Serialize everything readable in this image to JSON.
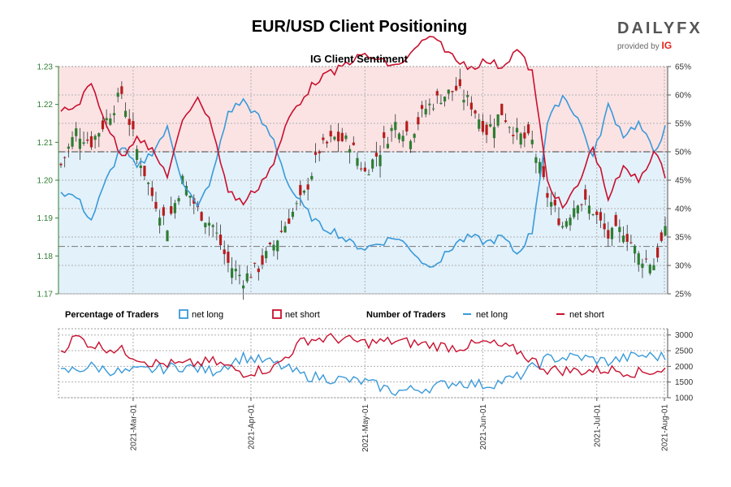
{
  "title": "EUR/USD Client Positioning",
  "logo": {
    "brand": "DAILYFX",
    "provided_by": "provided by",
    "ig": "IG"
  },
  "colors": {
    "long": "#3a9ad9",
    "short": "#c8102e",
    "long_zone": "#e3f1fa",
    "short_zone": "#fbe3e4",
    "candle_up": "#2e7d32",
    "candle_down": "#b71c1c",
    "price_axis": "#2e7d32"
  },
  "chart_data": [
    {
      "type": "candlestick",
      "title": "IG Client Sentiment",
      "x_labels": [
        "2021-Mar-01",
        "2021-Apr-01",
        "2021-May-01",
        "2021-Jun-01",
        "2021-Jul-01",
        "2021-Aug-01"
      ],
      "n_points": 160,
      "price_axis": {
        "ylim": [
          1.17,
          1.23
        ],
        "ticks": [
          "1.17",
          "1.18",
          "1.19",
          "1.20",
          "1.21",
          "1.22",
          "1.23"
        ]
      },
      "pct_axis": {
        "ylim": [
          25,
          65
        ],
        "ticks": [
          "25%",
          "30%",
          "35%",
          "40%",
          "45%",
          "50%",
          "55%",
          "60%",
          "65%"
        ]
      },
      "reference_lines": {
        "price_current": 1.1825,
        "pct_50": 50
      },
      "price_anchors": [
        [
          0,
          1.204
        ],
        [
          4,
          1.213
        ],
        [
          8,
          1.21
        ],
        [
          12,
          1.216
        ],
        [
          16,
          1.223
        ],
        [
          20,
          1.208
        ],
        [
          24,
          1.196
        ],
        [
          28,
          1.188
        ],
        [
          32,
          1.2
        ],
        [
          36,
          1.192
        ],
        [
          40,
          1.188
        ],
        [
          44,
          1.178
        ],
        [
          48,
          1.174
        ],
        [
          52,
          1.177
        ],
        [
          56,
          1.183
        ],
        [
          60,
          1.19
        ],
        [
          64,
          1.196
        ],
        [
          68,
          1.208
        ],
        [
          72,
          1.211
        ],
        [
          76,
          1.21
        ],
        [
          80,
          1.202
        ],
        [
          84,
          1.208
        ],
        [
          88,
          1.215
        ],
        [
          92,
          1.212
        ],
        [
          96,
          1.219
        ],
        [
          100,
          1.222
        ],
        [
          104,
          1.224
        ],
        [
          108,
          1.22
        ],
        [
          112,
          1.213
        ],
        [
          116,
          1.218
        ],
        [
          120,
          1.212
        ],
        [
          124,
          1.21
        ],
        [
          128,
          1.196
        ],
        [
          132,
          1.188
        ],
        [
          136,
          1.195
        ],
        [
          140,
          1.192
        ],
        [
          144,
          1.185
        ],
        [
          148,
          1.187
        ],
        [
          152,
          1.18
        ],
        [
          156,
          1.178
        ],
        [
          159,
          1.186
        ]
      ],
      "long_pct_anchors": [
        [
          0,
          43
        ],
        [
          4,
          42
        ],
        [
          8,
          38
        ],
        [
          12,
          45
        ],
        [
          16,
          51
        ],
        [
          20,
          47
        ],
        [
          24,
          50
        ],
        [
          28,
          54
        ],
        [
          32,
          45
        ],
        [
          36,
          40
        ],
        [
          40,
          46
        ],
        [
          44,
          57
        ],
        [
          48,
          59
        ],
        [
          52,
          56
        ],
        [
          56,
          52
        ],
        [
          60,
          44
        ],
        [
          64,
          40
        ],
        [
          68,
          37
        ],
        [
          72,
          36
        ],
        [
          76,
          34
        ],
        [
          80,
          33
        ],
        [
          84,
          34
        ],
        [
          88,
          35
        ],
        [
          92,
          33
        ],
        [
          96,
          30
        ],
        [
          100,
          31
        ],
        [
          104,
          34
        ],
        [
          108,
          35
        ],
        [
          112,
          34
        ],
        [
          116,
          35
        ],
        [
          120,
          32
        ],
        [
          124,
          36
        ],
        [
          128,
          55
        ],
        [
          132,
          60
        ],
        [
          136,
          56
        ],
        [
          140,
          49
        ],
        [
          144,
          58
        ],
        [
          148,
          53
        ],
        [
          152,
          55
        ],
        [
          156,
          50
        ],
        [
          159,
          54
        ]
      ],
      "series": [
        {
          "name": "net long",
          "key": "long"
        },
        {
          "name": "net short",
          "key": "short"
        }
      ]
    },
    {
      "type": "line",
      "title": "Number of Traders",
      "x_labels": [
        "2021-Mar-01",
        "2021-Apr-01",
        "2021-May-01",
        "2021-Jun-01",
        "2021-Jul-01",
        "2021-Aug-01"
      ],
      "ylim": [
        1000,
        3200
      ],
      "ticks": [
        "1000",
        "1500",
        "2000",
        "2500",
        "3000"
      ],
      "long_anchors": [
        [
          0,
          1800
        ],
        [
          8,
          2000
        ],
        [
          16,
          1800
        ],
        [
          24,
          1900
        ],
        [
          32,
          2000
        ],
        [
          40,
          1850
        ],
        [
          48,
          2300
        ],
        [
          56,
          2100
        ],
        [
          64,
          1700
        ],
        [
          72,
          1600
        ],
        [
          80,
          1500
        ],
        [
          88,
          1200
        ],
        [
          96,
          1300
        ],
        [
          104,
          1500
        ],
        [
          112,
          1400
        ],
        [
          120,
          1650
        ],
        [
          128,
          2250
        ],
        [
          136,
          2300
        ],
        [
          144,
          2150
        ],
        [
          152,
          2350
        ],
        [
          159,
          2300
        ]
      ],
      "short_anchors": [
        [
          0,
          2500
        ],
        [
          4,
          2950
        ],
        [
          8,
          2700
        ],
        [
          16,
          2500
        ],
        [
          24,
          2100
        ],
        [
          32,
          2050
        ],
        [
          40,
          2150
        ],
        [
          48,
          1800
        ],
        [
          56,
          1950
        ],
        [
          64,
          2850
        ],
        [
          72,
          2900
        ],
        [
          80,
          2750
        ],
        [
          88,
          2800
        ],
        [
          96,
          2700
        ],
        [
          104,
          2600
        ],
        [
          112,
          2750
        ],
        [
          120,
          2500
        ],
        [
          128,
          1900
        ],
        [
          136,
          1850
        ],
        [
          144,
          1900
        ],
        [
          152,
          1800
        ],
        [
          159,
          1900
        ]
      ]
    }
  ],
  "legend": {
    "pct_title": "Percentage of Traders",
    "pct_long": "net long",
    "pct_short": "net short",
    "num_title": "Number of Traders",
    "num_long": "net long",
    "num_short": "net short"
  }
}
